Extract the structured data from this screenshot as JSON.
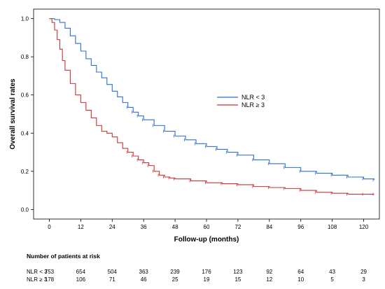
{
  "chart_data": {
    "type": "line",
    "subtype": "kaplan-meier",
    "xlabel": "Follow-up (months)",
    "ylabel": "Overall survival rates",
    "xlim": [
      -6,
      126
    ],
    "ylim": [
      -0.05,
      1.05
    ],
    "x_ticks": [
      0,
      12,
      24,
      36,
      48,
      60,
      72,
      84,
      96,
      108,
      120
    ],
    "y_ticks": [
      0.0,
      0.2,
      0.4,
      0.6,
      0.8,
      1.0
    ],
    "y_tick_labels": [
      "0.0",
      "0.2",
      "0.4",
      "0.6",
      "0.8",
      "1.0"
    ],
    "grid": false,
    "legend_position": "right",
    "series": [
      {
        "name": "NLR < 3",
        "color": "#2d6fce",
        "x": [
          0,
          2,
          4,
          6,
          8,
          10,
          12,
          14,
          16,
          18,
          20,
          22,
          24,
          26,
          28,
          30,
          32,
          34,
          36,
          40,
          44,
          48,
          52,
          56,
          60,
          64,
          68,
          72,
          78,
          84,
          90,
          96,
          102,
          108,
          114,
          120,
          124
        ],
        "y": [
          1.0,
          0.995,
          0.98,
          0.95,
          0.91,
          0.87,
          0.83,
          0.79,
          0.755,
          0.72,
          0.69,
          0.655,
          0.62,
          0.59,
          0.56,
          0.535,
          0.51,
          0.49,
          0.47,
          0.44,
          0.41,
          0.385,
          0.365,
          0.345,
          0.33,
          0.315,
          0.3,
          0.285,
          0.26,
          0.24,
          0.22,
          0.2,
          0.19,
          0.18,
          0.17,
          0.16,
          0.155
        ]
      },
      {
        "name": "NLR ≥ 3",
        "color": "#cc3333",
        "x": [
          0,
          1,
          2,
          3,
          4,
          5,
          6,
          8,
          10,
          12,
          14,
          16,
          18,
          20,
          22,
          24,
          26,
          28,
          30,
          32,
          34,
          36,
          38,
          40,
          42,
          44,
          46,
          48,
          54,
          60,
          66,
          72,
          78,
          84,
          90,
          96,
          102,
          108,
          114,
          120,
          124
        ],
        "y": [
          1.0,
          0.98,
          0.94,
          0.89,
          0.84,
          0.78,
          0.73,
          0.66,
          0.6,
          0.56,
          0.52,
          0.48,
          0.44,
          0.41,
          0.4,
          0.38,
          0.35,
          0.32,
          0.3,
          0.28,
          0.26,
          0.245,
          0.23,
          0.2,
          0.18,
          0.17,
          0.165,
          0.16,
          0.15,
          0.14,
          0.135,
          0.13,
          0.12,
          0.115,
          0.11,
          0.1,
          0.09,
          0.085,
          0.08,
          0.08,
          0.08
        ]
      }
    ],
    "risk_table": {
      "title": "Number of patients at risk",
      "rows": [
        {
          "label": "NLR < 3",
          "values": [
            "753",
            "654",
            "504",
            "363",
            "239",
            "176",
            "123",
            "92",
            "64",
            "43",
            "29"
          ]
        },
        {
          "label": "NLR ≥ 3",
          "values": [
            "178",
            "106",
            "71",
            "46",
            "25",
            "19",
            "15",
            "12",
            "10",
            "5",
            "3"
          ]
        }
      ]
    }
  }
}
